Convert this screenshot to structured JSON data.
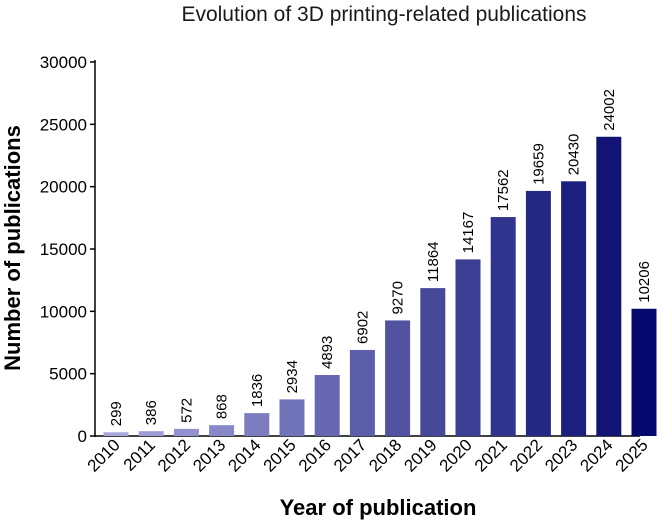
{
  "chart_data": {
    "type": "bar",
    "title": "Evolution of 3D printing-related publications",
    "xlabel": "Year of publication",
    "ylabel": "Number of publications",
    "categories": [
      "2010",
      "2011",
      "2012",
      "2013",
      "2014",
      "2015",
      "2016",
      "2017",
      "2018",
      "2019",
      "2020",
      "2021",
      "2022",
      "2023",
      "2024",
      "2025"
    ],
    "values": [
      299,
      386,
      572,
      868,
      1836,
      2934,
      4893,
      6902,
      9270,
      11864,
      14167,
      17562,
      19659,
      20430,
      24002,
      10206
    ],
    "data_labels": [
      "299",
      "386",
      "572",
      "868",
      "1836",
      "2934",
      "4893",
      "6902",
      "9270",
      "11864",
      "14167",
      "17562",
      "19659",
      "20430",
      "24002",
      "10206"
    ],
    "ylim": [
      0,
      30000
    ],
    "yticks": [
      "0",
      "5000",
      "10000",
      "15000",
      "20000",
      "25000",
      "30000"
    ],
    "grid": false,
    "legend": "none",
    "colors": {
      "light": "#a7a7dd",
      "dark": "#060a6e"
    }
  }
}
